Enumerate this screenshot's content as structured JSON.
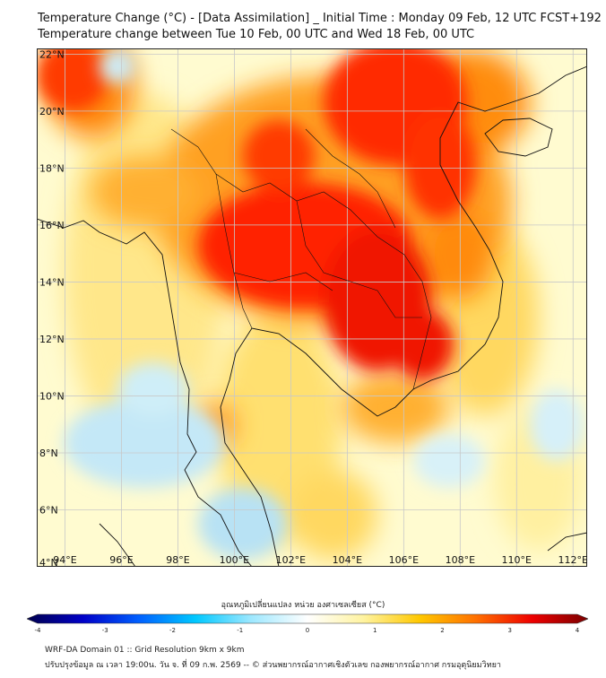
{
  "title": {
    "line1": "Temperature Change (°C) - [Data Assimilation] _ Initial Time : Monday 09 Feb, 12 UTC FCST+192",
    "line2": "Temperature change between Tue 10 Feb, 00 UTC and Wed 18 Feb, 00 UTC"
  },
  "map": {
    "lat_labels": [
      "22°N",
      "20°N",
      "18°N",
      "16°N",
      "14°N",
      "12°N",
      "10°N",
      "8°N",
      "6°N",
      "4°N"
    ],
    "lon_labels": [
      "94°E",
      "96°E",
      "98°E",
      "100°E",
      "102°E",
      "104°E",
      "106°E",
      "108°E",
      "110°E",
      "112°E"
    ],
    "lat_range": [
      4,
      22.2
    ],
    "lon_range": [
      93,
      112.5
    ],
    "background_color": "#fffbd0",
    "hotspots": [
      {
        "region": "Northern & central Thailand, Laos, Cambodia",
        "level": "strong warming",
        "color": "#ff1a00"
      },
      {
        "region": "Northern Myanmar / Yunnan",
        "level": "strong warming",
        "color": "#ff3300"
      },
      {
        "region": "Northern Vietnam / Gulf of Tonkin",
        "level": "strong warming",
        "color": "#ff2200"
      },
      {
        "region": "Andaman Sea",
        "level": "slight cooling",
        "color": "#bfe4f6"
      },
      {
        "region": "Gulf of Thailand / Malay Peninsula",
        "level": "slight cooling",
        "color": "#c6ecf7"
      }
    ]
  },
  "colorbar": {
    "title": "อุณหภูมิเปลี่ยนแปลง หน่วย องศาเซลเซียส (°C)",
    "ticks": [
      "-4",
      "-3",
      "-2",
      "-1",
      "0",
      "1",
      "2",
      "3",
      "4"
    ],
    "min": -4,
    "max": 4,
    "colors": [
      "#00004d",
      "#0000c8",
      "#0060ff",
      "#00c8ff",
      "#9ee8ff",
      "#ffffff",
      "#fff3a0",
      "#ffc800",
      "#ff7000",
      "#ee0000",
      "#7a0000"
    ]
  },
  "footer": {
    "line1": "WRF-DA Domain 01 :: Grid Resolution 9km x 9km",
    "line2": "ปรับปรุงข้อมูล ณ เวลา 19:00น. วัน จ. ที่ 09 ก.พ. 2569 -- © ส่วนพยากรณ์อากาศเชิงตัวเลข กองพยากรณ์อากาศ กรมอุตุนิยมวิทยา"
  }
}
